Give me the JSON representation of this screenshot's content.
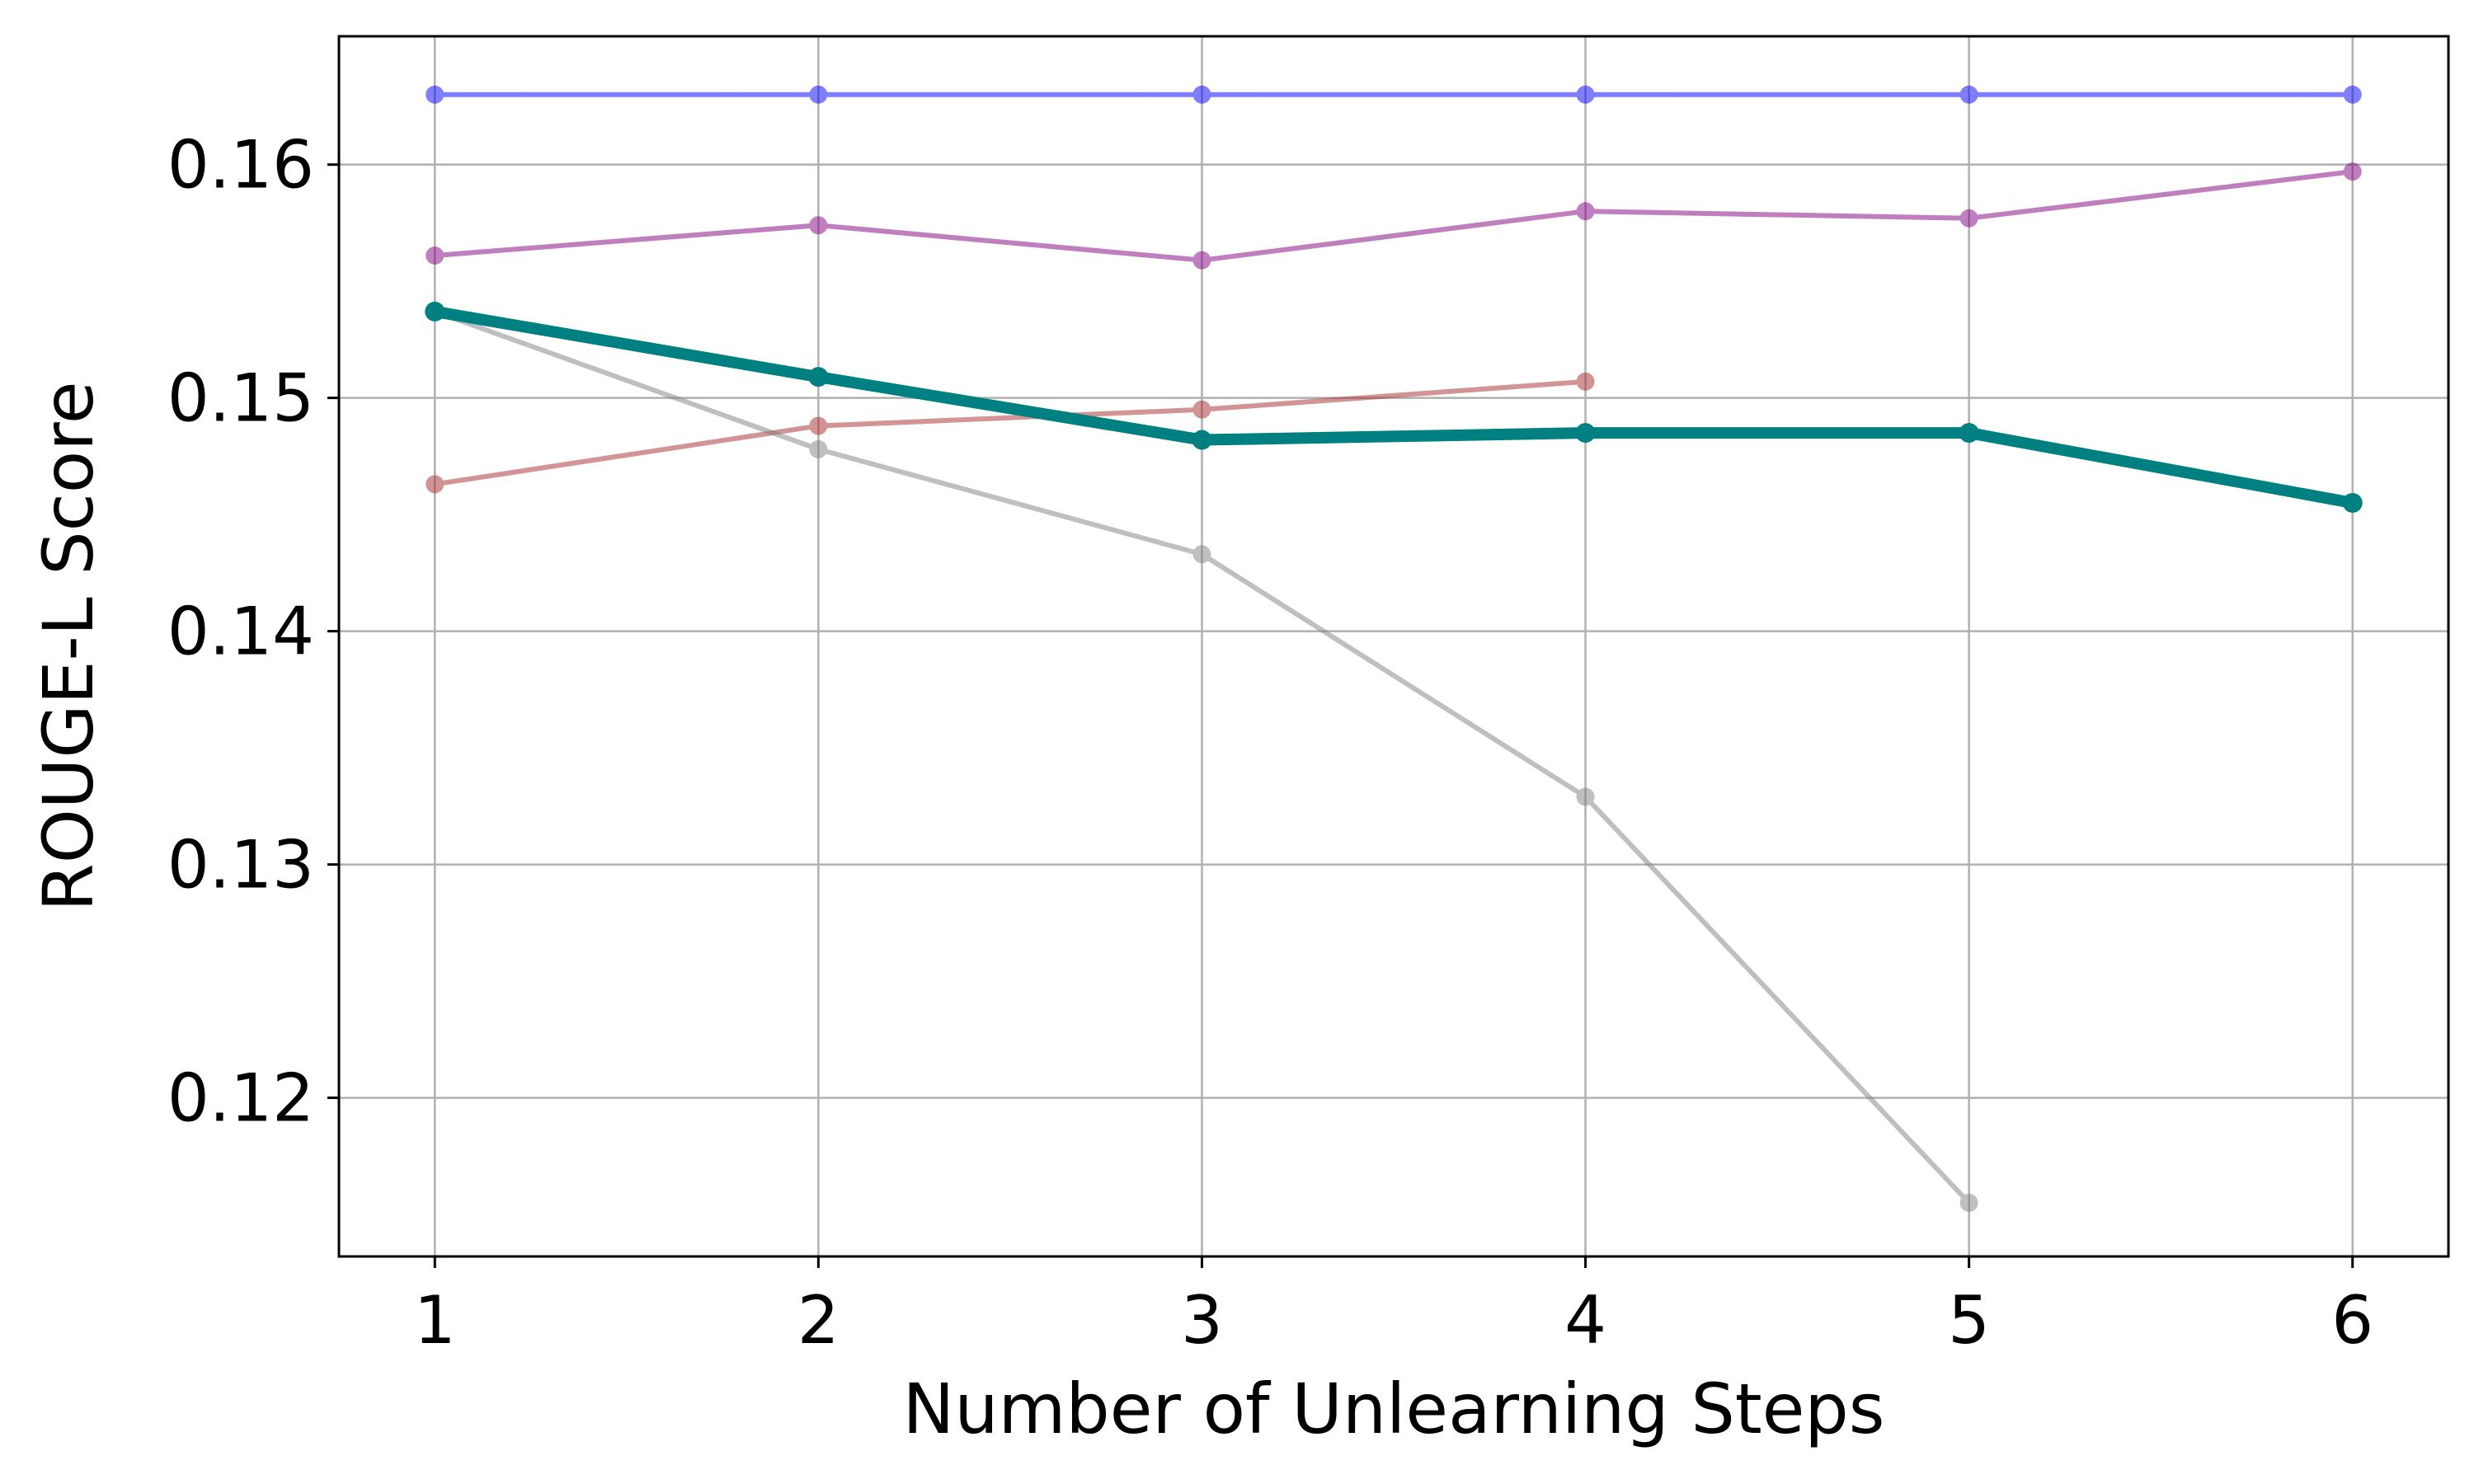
{
  "chart_data": {
    "type": "line",
    "title": "",
    "xlabel": "Number of Unlearning Steps",
    "ylabel": "ROUGE-L Score",
    "xlim": [
      0.75,
      6.25
    ],
    "ylim": [
      0.1132,
      0.1655
    ],
    "x_ticks": [
      1,
      2,
      3,
      4,
      5,
      6
    ],
    "y_ticks": [
      0.12,
      0.13,
      0.14,
      0.15,
      0.16
    ],
    "y_tick_labels": [
      "0.12",
      "0.13",
      "0.14",
      "0.15",
      "0.16"
    ],
    "grid": true,
    "legend": "none",
    "series": [
      {
        "color": "#0000ff",
        "opacity": 0.5,
        "width": "thin",
        "x": [
          1,
          2,
          3,
          4,
          5,
          6
        ],
        "y": [
          0.163,
          0.163,
          0.163,
          0.163,
          0.163,
          0.163
        ]
      },
      {
        "color": "#800080",
        "opacity": 0.5,
        "width": "thin",
        "x": [
          1,
          2,
          3,
          4,
          5,
          6
        ],
        "y": [
          0.1561,
          0.1574,
          0.1559,
          0.158,
          0.1577,
          0.1597
        ]
      },
      {
        "color": "#a52a2a",
        "opacity": 0.5,
        "width": "thin",
        "x": [
          1,
          2,
          3,
          4
        ],
        "y": [
          0.1463,
          0.1488,
          0.1495,
          0.1507
        ]
      },
      {
        "color": "#808080",
        "opacity": 0.5,
        "width": "thin",
        "x": [
          1,
          2,
          3,
          4,
          5
        ],
        "y": [
          0.1537,
          0.1478,
          0.1433,
          0.1329,
          0.1155
        ]
      },
      {
        "color": "#008080",
        "opacity": 1.0,
        "width": "thick",
        "x": [
          1,
          2,
          3,
          4,
          5,
          6
        ],
        "y": [
          0.1537,
          0.1509,
          0.1482,
          0.1485,
          0.1485,
          0.1455
        ]
      }
    ]
  }
}
